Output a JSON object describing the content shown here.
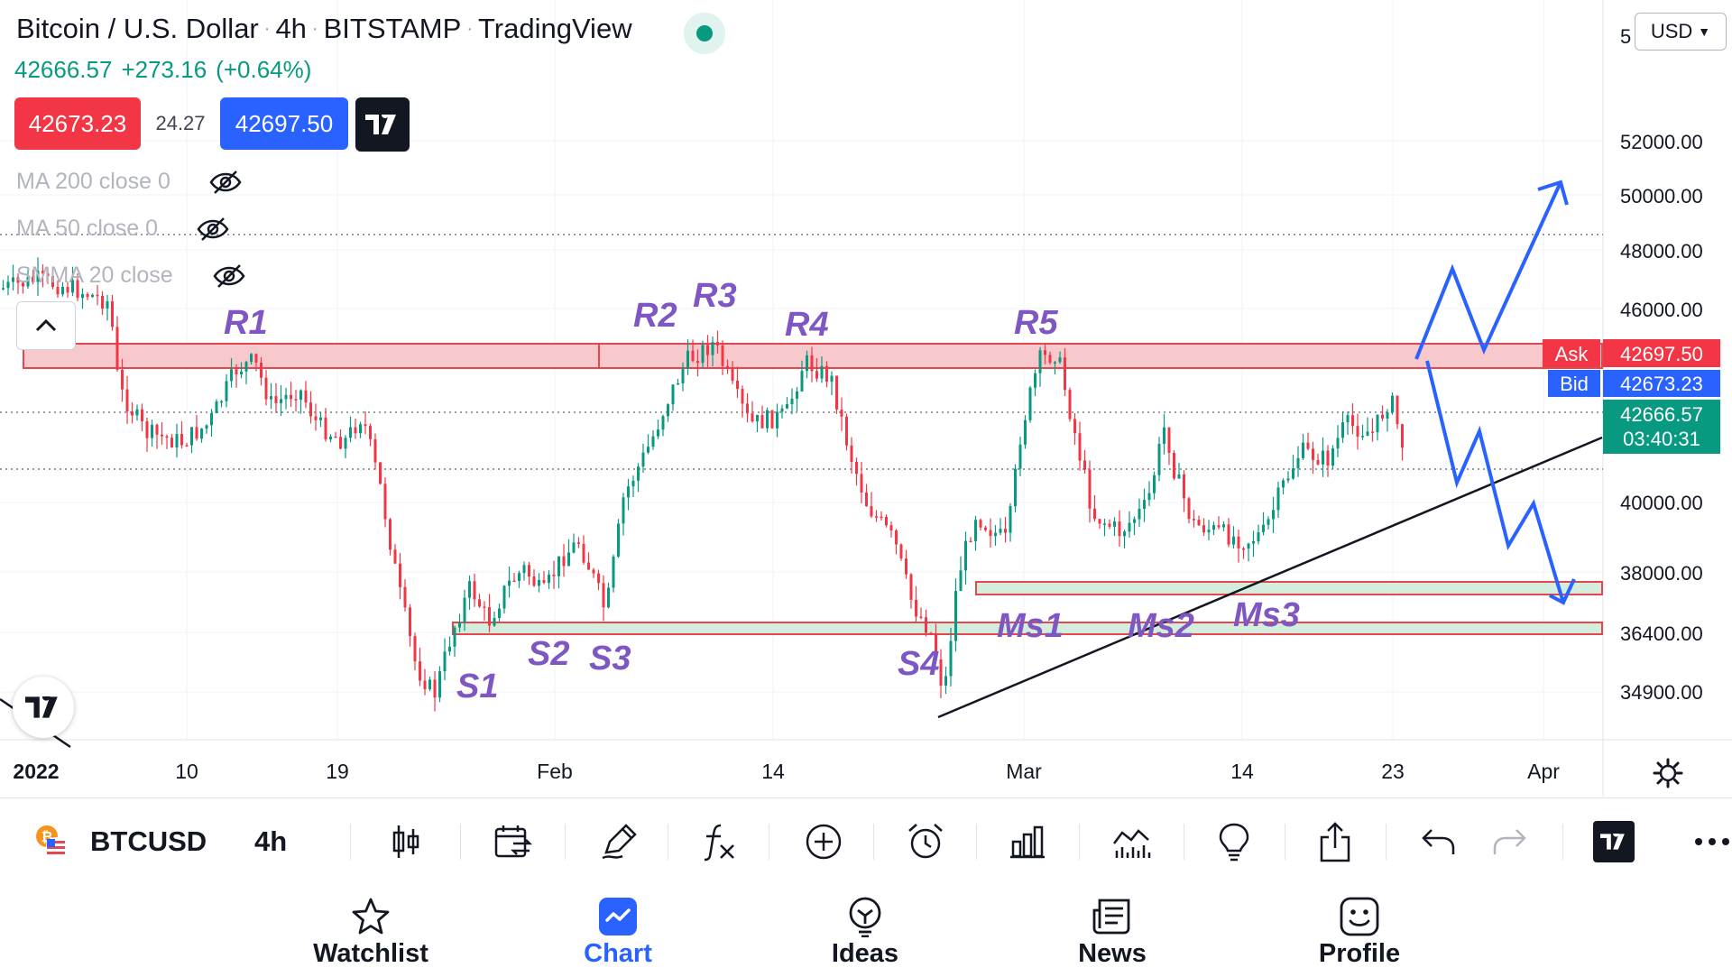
{
  "header": {
    "symbol_name": "Bitcoin / U.S. Dollar",
    "interval": "4h",
    "exchange": "BITSTAMP",
    "source": "TradingView"
  },
  "quote": {
    "last": "42666.57",
    "change": "+273.16",
    "change_pct": "(+0.64%)"
  },
  "trade": {
    "sell": "42673.23",
    "spread": "24.27",
    "buy": "42697.50"
  },
  "indicators": [
    {
      "label": "MA 200 close 0"
    },
    {
      "label": "MA 50 close 0"
    },
    {
      "label": "SMMA 20 close"
    }
  ],
  "currency_button": "USD",
  "price_axis": {
    "clipped_top": "5",
    "ticks": [
      "52000.00",
      "50000.00",
      "48000.00",
      "46000.00",
      "40000.00",
      "38000.00",
      "36400.00",
      "34900.00"
    ]
  },
  "price_tags": {
    "ask_label": "Ask",
    "ask": "42697.50",
    "bid_label": "Bid",
    "bid": "42673.23",
    "last": "42666.57",
    "countdown": "03:40:31"
  },
  "time_axis": [
    "2022",
    "10",
    "19",
    "Feb",
    "14",
    "Mar",
    "14",
    "23",
    "Apr"
  ],
  "annotations": [
    "R1",
    "R2",
    "R3",
    "R4",
    "R5",
    "S1",
    "S2",
    "S3",
    "S4",
    "Ms1",
    "Ms2",
    "Ms3"
  ],
  "colors": {
    "up": "#089981",
    "down": "#f23645",
    "accent": "#2962ff",
    "label": "#7e57c2",
    "zone_red": "#f8c9cc",
    "zone_green": "#d4eddc"
  },
  "toolbar": {
    "symbol": "BTCUSD",
    "interval": "4h"
  },
  "nav": [
    {
      "label": "Watchlist",
      "icon": "star-icon"
    },
    {
      "label": "Chart",
      "icon": "chart-icon",
      "active": true
    },
    {
      "label": "Ideas",
      "icon": "lightbulb-icon"
    },
    {
      "label": "News",
      "icon": "news-icon"
    },
    {
      "label": "Profile",
      "icon": "smile-icon"
    }
  ]
}
